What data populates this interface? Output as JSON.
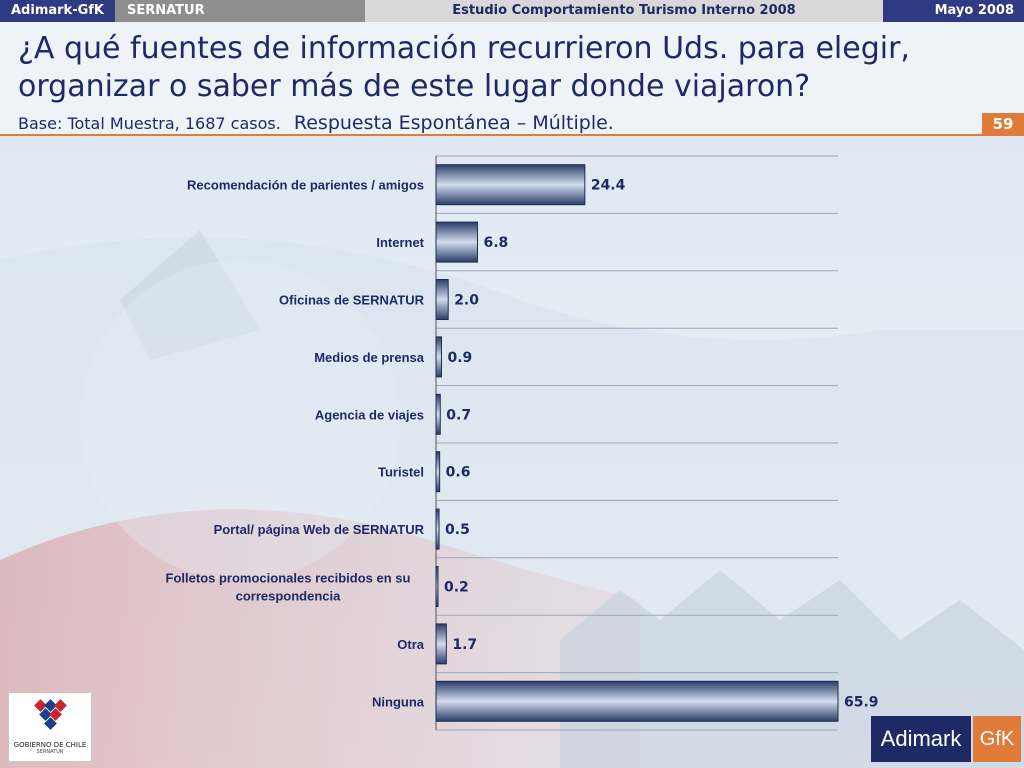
{
  "header": {
    "company": "Adimark-GfK",
    "client": "SERNATUR",
    "study": "Estudio Comportamiento Turismo Interno 2008",
    "date": "Mayo 2008"
  },
  "slide": {
    "title": "¿A qué fuentes de información recurrieron Uds. para elegir, organizar o saber más de este lugar donde viajaron?",
    "base": "Base: Total Muestra, 1687 casos.",
    "response_type": "Respuesta Espontánea – Múltiple.",
    "page_number": "59"
  },
  "chart_data": {
    "type": "bar",
    "orientation": "horizontal",
    "categories": [
      [
        "Recomendación de parientes / amigos"
      ],
      [
        "Internet"
      ],
      [
        "Oficinas de SERNATUR"
      ],
      [
        "Medios de prensa"
      ],
      [
        "Agencia de viajes"
      ],
      [
        "Turistel"
      ],
      [
        "Portal/ página Web de SERNATUR"
      ],
      [
        "Folletos promocionales recibidos en su",
        "correspondencia"
      ],
      [
        "Otra"
      ],
      [
        "Ninguna"
      ]
    ],
    "values": [
      24.4,
      6.8,
      2.0,
      0.9,
      0.7,
      0.6,
      0.5,
      0.2,
      1.7,
      65.9
    ],
    "value_labels": [
      "24.4",
      "6.8",
      "2.0",
      "0.9",
      "0.7",
      "0.6",
      "0.5",
      "0.2",
      "1.7",
      "65.9"
    ],
    "xlim": [
      0,
      65.9
    ],
    "grid": true,
    "bar_color": "#4a5f8c"
  },
  "logos": {
    "gobierno": "GOBIERNO DE CHILE",
    "gobierno_sub": "SERNATUR",
    "adimark": "Adimark",
    "gfk": "GfK"
  }
}
